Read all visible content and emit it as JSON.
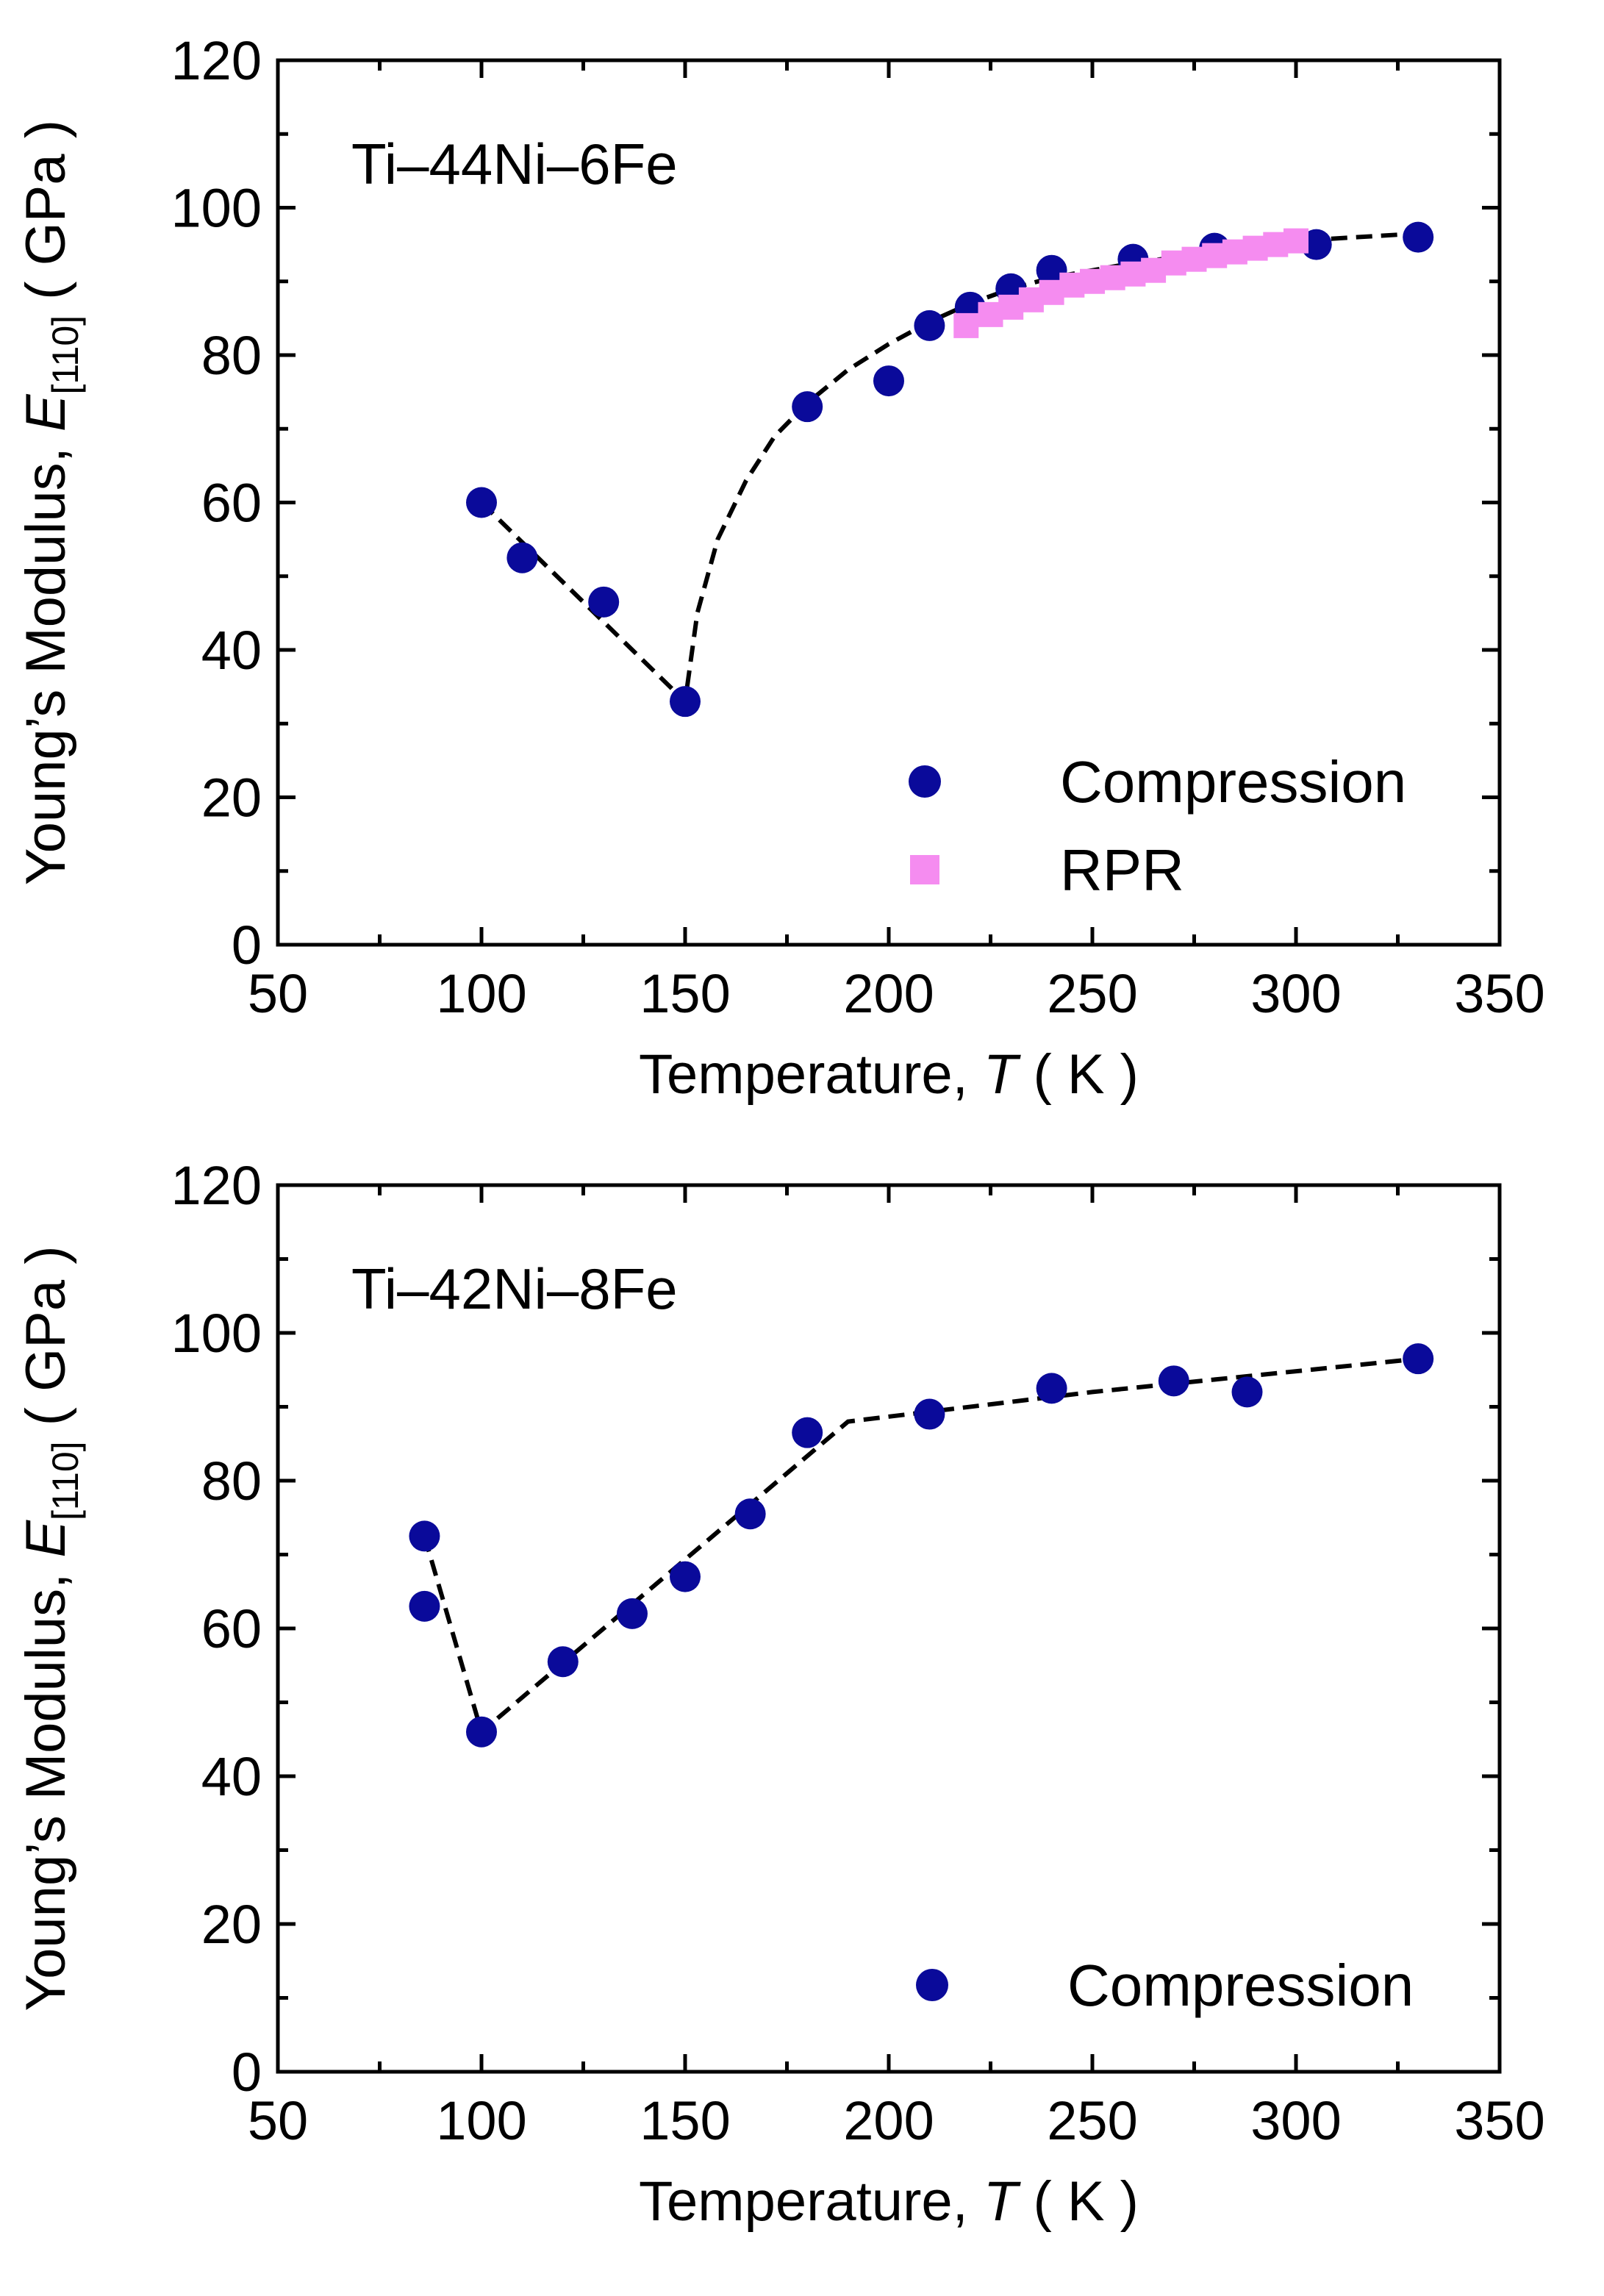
{
  "colors": {
    "compression": "#0a0a9a",
    "rpr": "#f58cf0",
    "axis": "#000000",
    "fit_line": "#000000"
  },
  "chart_data": [
    {
      "type": "scatter",
      "title": "Ti–44Ni–6Fe",
      "xlabel_prefix": "Temperature, ",
      "xlabel_symbol": "T",
      "xlabel_unit": " ( K )",
      "ylabel_prefix": "Young’s Modulus, ",
      "ylabel_symbol": "E",
      "ylabel_subscript": "[110]",
      "ylabel_unit": " ( GPa )",
      "xlim": [
        50,
        350
      ],
      "ylim": [
        0,
        120
      ],
      "xticks": [
        "50",
        "100",
        "150",
        "200",
        "250",
        "300",
        "350"
      ],
      "yticks": [
        "0",
        "20",
        "40",
        "60",
        "80",
        "100",
        "120"
      ],
      "legend_position": "bottom-right",
      "series": [
        {
          "name": "Compression",
          "marker": "circle",
          "x": [
            100,
            110,
            130,
            150,
            180,
            200,
            210,
            220,
            230,
            240,
            260,
            280,
            305,
            330
          ],
          "y": [
            60,
            52.5,
            46.5,
            33,
            73,
            76.5,
            84,
            86.5,
            89,
            91.5,
            93,
            94.5,
            95,
            96
          ]
        },
        {
          "name": "RPR",
          "marker": "square",
          "x": [
            219,
            225,
            230,
            235,
            240,
            245,
            250,
            255,
            260,
            265,
            270,
            275,
            280,
            285,
            290,
            295,
            300
          ],
          "y": [
            84,
            85.5,
            86.5,
            87.5,
            88.5,
            89.5,
            90,
            90.5,
            91,
            91.5,
            92.5,
            93,
            93.5,
            94,
            94.5,
            95,
            95.5
          ]
        }
      ],
      "fit_line": {
        "x": [
          100,
          150,
          153,
          158,
          165,
          172,
          180,
          190,
          200,
          210,
          220,
          230,
          240,
          260,
          280,
          300,
          330
        ],
        "y": [
          60,
          33,
          45,
          55,
          63,
          69,
          73.5,
          78,
          81.5,
          84.5,
          87,
          89,
          90.5,
          92.5,
          94,
          95.5,
          96.5
        ]
      }
    },
    {
      "type": "scatter",
      "title": "Ti–42Ni–8Fe",
      "xlabel_prefix": "Temperature, ",
      "xlabel_symbol": "T",
      "xlabel_unit": " ( K )",
      "ylabel_prefix": "Young’s Modulus, ",
      "ylabel_symbol": "E",
      "ylabel_subscript": "[110]",
      "ylabel_unit": " ( GPa )",
      "xlim": [
        50,
        350
      ],
      "ylim": [
        0,
        120
      ],
      "xticks": [
        "50",
        "100",
        "150",
        "200",
        "250",
        "300",
        "350"
      ],
      "yticks": [
        "0",
        "20",
        "40",
        "60",
        "80",
        "100",
        "120"
      ],
      "legend_position": "bottom-right",
      "series": [
        {
          "name": "Compression",
          "marker": "circle",
          "x": [
            86,
            86,
            100,
            120,
            137,
            150,
            166,
            180,
            210,
            240,
            270,
            288,
            330
          ],
          "y": [
            72.5,
            63,
            46,
            55.5,
            62,
            67,
            75.5,
            86.5,
            89,
            92.5,
            93.5,
            92,
            96.5
          ]
        }
      ],
      "fit_line": {
        "x": [
          86,
          100,
          190,
          250,
          330
        ],
        "y": [
          72.5,
          46,
          88,
          92,
          96.5
        ]
      }
    }
  ]
}
